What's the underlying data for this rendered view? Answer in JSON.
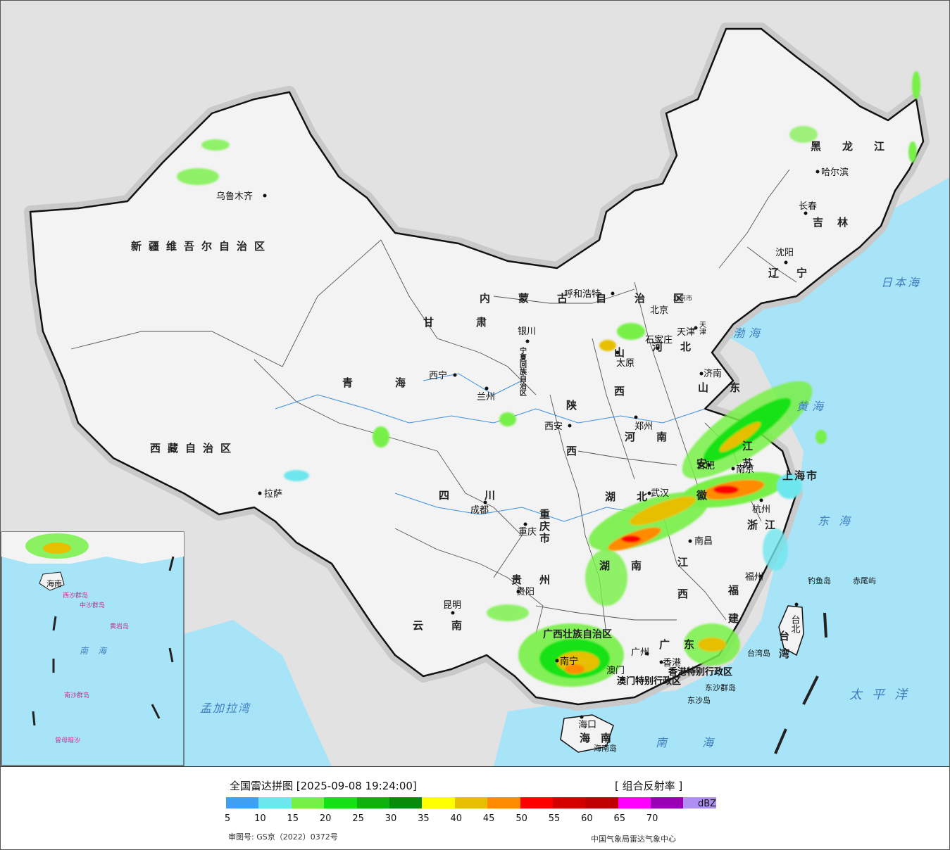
{
  "title": "全国雷达拼图 [2025-09-08 19:24:00]",
  "product": "[ 组合反射率 ]",
  "unit": "dBZ",
  "approval": "审图号: GS京（2022）0372号",
  "source": "中国气象局雷达气象中心",
  "legend": [
    {
      "color": "#3f9ff0",
      "label": "5"
    },
    {
      "color": "#6ee6ee",
      "label": "10"
    },
    {
      "color": "#77f046",
      "label": "15"
    },
    {
      "color": "#15e215",
      "label": "20"
    },
    {
      "color": "#0fb10f",
      "label": "25"
    },
    {
      "color": "#0a8a0a",
      "label": "30"
    },
    {
      "color": "#ffff00",
      "label": "35"
    },
    {
      "color": "#e6c000",
      "label": "40"
    },
    {
      "color": "#ff8c00",
      "label": "45"
    },
    {
      "color": "#ff0000",
      "label": "50"
    },
    {
      "color": "#d40000",
      "label": "55"
    },
    {
      "color": "#c00000",
      "label": "60"
    },
    {
      "color": "#ff00ff",
      "label": "65"
    },
    {
      "color": "#9900b4",
      "label": "70"
    },
    {
      "color": "#ad90f0",
      "label": ""
    }
  ],
  "provinces": {
    "xinjiang": "新疆维吾尔自治区",
    "xizang": "西藏自治区",
    "qinghai": "青海",
    "gansu": "甘肃",
    "neimenggu": "内蒙古自治区",
    "heilongjiang": "黑龙江",
    "jilin": "吉林",
    "liaoning": "辽宁",
    "hebei": "河北",
    "shanxi": "山西",
    "shaanxi": "陕西",
    "henan": "河南",
    "shandong": "山东",
    "jiangsu": "江苏",
    "anhui": "安徽",
    "zhejiang": "浙江",
    "hubei": "湖北",
    "hunan": "湖南",
    "jiangxi": "江西",
    "fujian": "福建",
    "sichuan": "四川",
    "chongqing": "重庆市",
    "guizhou": "贵州",
    "yunnan": "云南",
    "guangxi": "广西壮族自治区",
    "guangdong": "广东",
    "hainan": "海南",
    "ningxia": "宁夏回族自治区",
    "shanghai": "上海市",
    "beijing": "北京市",
    "tianjin": "天津",
    "taiwan": "台湾",
    "hongkong": "香港特别行政区",
    "macau": "澳门特别行政区"
  },
  "cities": {
    "urumqi": "乌鲁木齐",
    "lhasa": "拉萨",
    "xining": "西宁",
    "lanzhou": "兰州",
    "yinchuan": "银川",
    "hohhot": "呼和浩特",
    "beijing": "北京",
    "tianjin": "天津",
    "shijiazhuang": "石家庄",
    "taiyuan": "太原",
    "jinan": "济南",
    "xian": "西安",
    "zhengzhou": "郑州",
    "hefei": "合肥",
    "nanjing": "南京",
    "hangzhou": "杭州",
    "wuhan": "武汉",
    "chengdu": "成都",
    "chongqing": "重庆",
    "guiyang": "贵阳",
    "kunming": "昆明",
    "changsha": "长沙",
    "nanchang": "南昌",
    "fuzhou": "福州",
    "taibei": "台北",
    "nanning": "南宁",
    "guangzhou": "广州",
    "hongkong": "香港",
    "macau": "澳门",
    "haikou": "海口",
    "harbin": "哈尔滨",
    "changchun": "长春",
    "shenyang": "沈阳"
  },
  "seas": {
    "bohai": "渤海",
    "huanghai": "黄海",
    "donghai": "东海",
    "nanhai": "南海",
    "taipingyang": "太平洋",
    "ribenhai": "日本海",
    "mengjiala": "孟加拉湾"
  },
  "islands": {
    "diaoyu": "钓鱼岛",
    "chiwei": "赤尾屿",
    "taiwan_island": "台湾岛",
    "dongsha_qundao": "东沙群岛",
    "dongsha_dao": "东沙岛",
    "hainan_island": "海南岛"
  },
  "inset": {
    "hainan": "海南",
    "xisha": "西沙群岛",
    "zhongsha": "中沙群岛",
    "huangyan": "黄岩岛",
    "nansha": "南沙群岛",
    "nanhai": "南海",
    "zengmu": "曾母暗沙"
  }
}
